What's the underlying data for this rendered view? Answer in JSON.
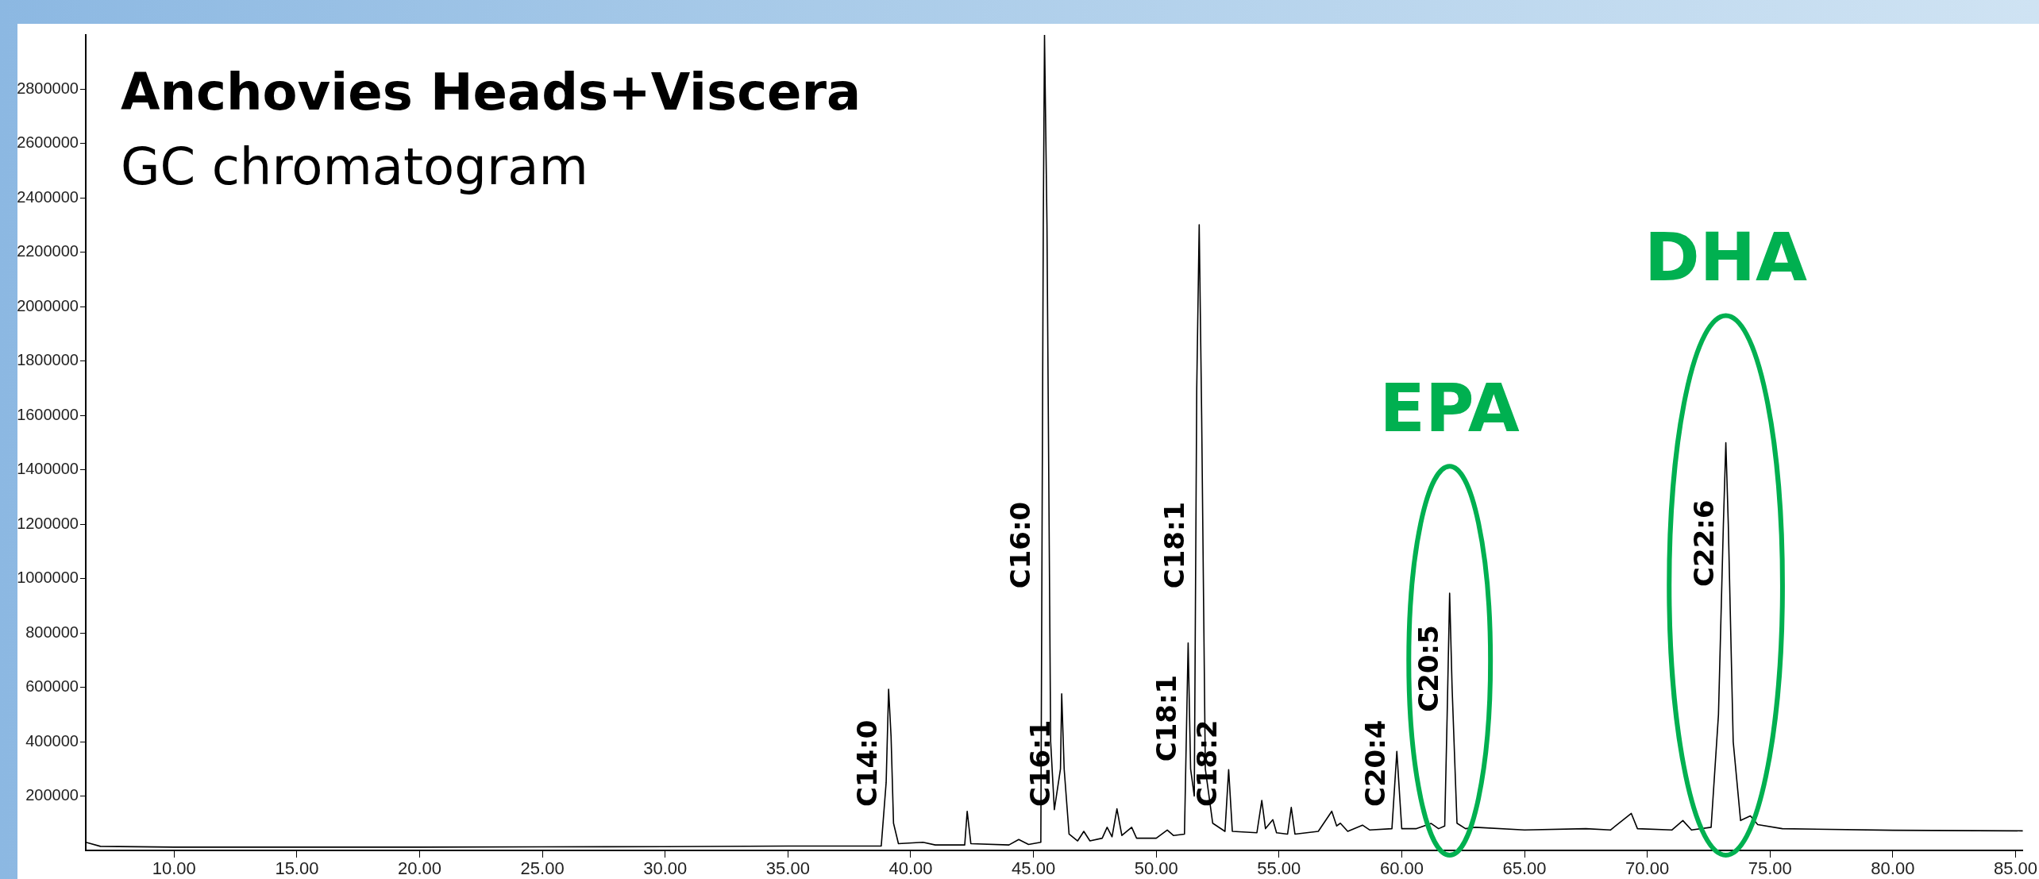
{
  "chart_data": {
    "type": "line",
    "title": "Anchovies Heads+Viscera",
    "subtitle": "GC chromatogram",
    "series": [
      {
        "color": "#000000",
        "x": [
          6.4,
          7,
          10,
          15,
          20,
          25,
          30,
          35,
          38.8,
          39.0,
          39.1,
          39.2,
          39.3,
          39.5,
          40.5,
          41,
          42.2,
          42.3,
          42.45,
          44.0,
          44.4,
          44.8,
          45.3,
          45.4,
          45.45,
          45.55,
          45.7,
          45.85,
          46.1,
          46.15,
          46.25,
          46.45,
          46.8,
          47.05,
          47.3,
          47.8,
          48.0,
          48.2,
          48.4,
          48.6,
          49.0,
          49.2,
          50.0,
          50.45,
          50.7,
          51.15,
          51.3,
          51.4,
          51.55,
          51.65,
          51.75,
          51.85,
          52.0,
          52.3,
          52.8,
          52.95,
          53.1,
          54.1,
          54.3,
          54.45,
          54.75,
          54.9,
          55.35,
          55.5,
          55.65,
          56.6,
          57.15,
          57.35,
          57.5,
          57.8,
          58.4,
          58.7,
          59.6,
          59.8,
          60.0,
          60.6,
          61.2,
          61.5,
          61.75,
          61.85,
          61.95,
          62.05,
          62.25,
          62.6,
          63.0,
          65,
          67.5,
          68.5,
          69.35,
          69.6,
          71.0,
          71.45,
          71.8,
          72.6,
          72.9,
          73.1,
          73.2,
          73.3,
          73.5,
          73.8,
          74.2,
          74.5,
          75.5,
          80,
          85.3
        ],
        "values": [
          30000,
          15000,
          12000,
          12000,
          12000,
          13000,
          14000,
          16000,
          16000,
          250000,
          593000,
          420000,
          100000,
          25000,
          30000,
          20000,
          20000,
          144000,
          25000,
          20000,
          40000,
          22000,
          30000,
          2300000,
          3000000,
          2300000,
          400000,
          150000,
          300000,
          576000,
          300000,
          60000,
          35000,
          70000,
          35000,
          45000,
          85000,
          50000,
          153000,
          55000,
          85000,
          45000,
          45000,
          75000,
          55000,
          60000,
          763000,
          300000,
          200000,
          1700000,
          2302000,
          1600000,
          300000,
          100000,
          70000,
          297000,
          70000,
          65000,
          184000,
          80000,
          113000,
          65000,
          60000,
          158000,
          60000,
          70000,
          144000,
          90000,
          100000,
          70000,
          93000,
          75000,
          80000,
          364000,
          80000,
          80000,
          99000,
          80000,
          90000,
          500000,
          946000,
          600000,
          100000,
          80000,
          85000,
          75000,
          80000,
          75000,
          136000,
          80000,
          75000,
          110000,
          75000,
          85000,
          500000,
          1200000,
          1500000,
          1200000,
          400000,
          110000,
          127000,
          95000,
          80000,
          74000,
          72000
        ]
      }
    ],
    "xlim": [
      6.4,
      85.3
    ],
    "xticks": [
      {
        "value": 10,
        "label": "10.00"
      },
      {
        "value": 15,
        "label": "15.00"
      },
      {
        "value": 20,
        "label": "20.00"
      },
      {
        "value": 25,
        "label": "25.00"
      },
      {
        "value": 30,
        "label": "30.00"
      },
      {
        "value": 35,
        "label": "35.00"
      },
      {
        "value": 40,
        "label": "40.00"
      },
      {
        "value": 45,
        "label": "45.00"
      },
      {
        "value": 50,
        "label": "50.00"
      },
      {
        "value": 55,
        "label": "55.00"
      },
      {
        "value": 60,
        "label": "60.00"
      },
      {
        "value": 65,
        "label": "65.00"
      },
      {
        "value": 70,
        "label": "70.00"
      },
      {
        "value": 75,
        "label": "75.00"
      },
      {
        "value": 80,
        "label": "80.00"
      },
      {
        "value": 85,
        "label": "85.00"
      }
    ],
    "ylim": [
      0,
      3000000
    ],
    "yticks": [
      200000,
      400000,
      600000,
      800000,
      1000000,
      1200000,
      1400000,
      1600000,
      1800000,
      2000000,
      2200000,
      2400000,
      2600000,
      2800000
    ],
    "marker": "none",
    "line_style": "solid",
    "annotations": [
      {
        "text": "C14:0",
        "x": 39.1,
        "y": 593000
      },
      {
        "text": "C16:0",
        "x": 45.35,
        "y": 1400000
      },
      {
        "text": "C16:1",
        "x": 46.15,
        "y": 576000
      },
      {
        "text": "C18:1",
        "x": 51.3,
        "y": 763000
      },
      {
        "text": "C18:1",
        "x": 51.63,
        "y": 1400000
      },
      {
        "text": "C18:2",
        "x": 52.95,
        "y": 297000
      },
      {
        "text": "C20:4",
        "x": 59.8,
        "y": 364000
      },
      {
        "text": "C20:5",
        "x": 61.95,
        "y": 946000
      },
      {
        "text": "C22:6",
        "x": 73.2,
        "y": 1500000
      },
      {
        "text": "EPA",
        "x": 61.95,
        "y": 946000
      },
      {
        "text": "DHA",
        "x": 73.2,
        "y": 1500000
      }
    ]
  }
}
